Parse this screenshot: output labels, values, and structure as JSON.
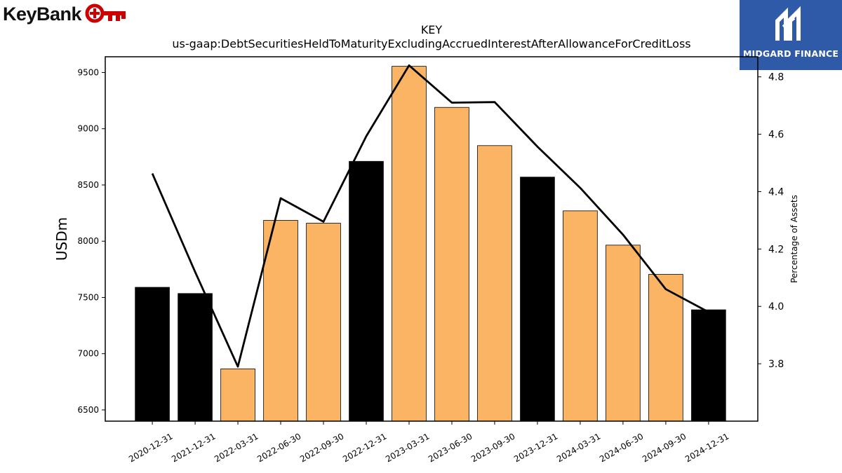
{
  "logos": {
    "left": "KeyBank",
    "right": "MIDGARD FINANCE"
  },
  "chart_data": {
    "type": "bar",
    "title": "KEY",
    "subtitle": "us-gaap:DebtSecuritiesHeldToMaturityExcludingAccruedInterestAfterAllowanceForCreditLoss",
    "ylabel": "USDm",
    "y2label": "Percentage of Assets",
    "ylim": [
      6400,
      9640
    ],
    "y2lim": [
      3.6,
      4.87
    ],
    "yticks": [
      6500,
      7000,
      7500,
      8000,
      8500,
      9000,
      9500
    ],
    "y2ticks": [
      3.8,
      4.0,
      4.2,
      4.4,
      4.6,
      4.8
    ],
    "y2tick_labels": [
      "3.8",
      "4.0",
      "4.2",
      "4.4",
      "4.6",
      "4.8"
    ],
    "categories": [
      "2020-12-31",
      "2021-12-31",
      "2022-03-31",
      "2022-06-30",
      "2022-09-30",
      "2022-12-31",
      "2023-03-31",
      "2023-06-30",
      "2023-09-30",
      "2023-12-31",
      "2024-03-31",
      "2024-06-30",
      "2024-09-30",
      "2024-12-31"
    ],
    "series": [
      {
        "values": [
          7590,
          7535,
          6865,
          8185,
          8160,
          8710,
          9555,
          9190,
          8850,
          8570,
          8270,
          7965,
          7705,
          7390
        ],
        "colors": [
          "#000000",
          "#000000",
          "#fbb463",
          "#fbb463",
          "#fbb463",
          "#000000",
          "#fbb463",
          "#fbb463",
          "#fbb463",
          "#000000",
          "#fbb463",
          "#fbb463",
          "#fbb463",
          "#000000"
        ]
      },
      {
        "axis": "right",
        "style": "line",
        "color": "#000000",
        "values": [
          4.463,
          4.12,
          3.79,
          4.377,
          4.295,
          4.593,
          4.84,
          4.71,
          4.712,
          4.557,
          4.413,
          4.25,
          4.06,
          3.98
        ]
      }
    ],
    "grid": false
  }
}
